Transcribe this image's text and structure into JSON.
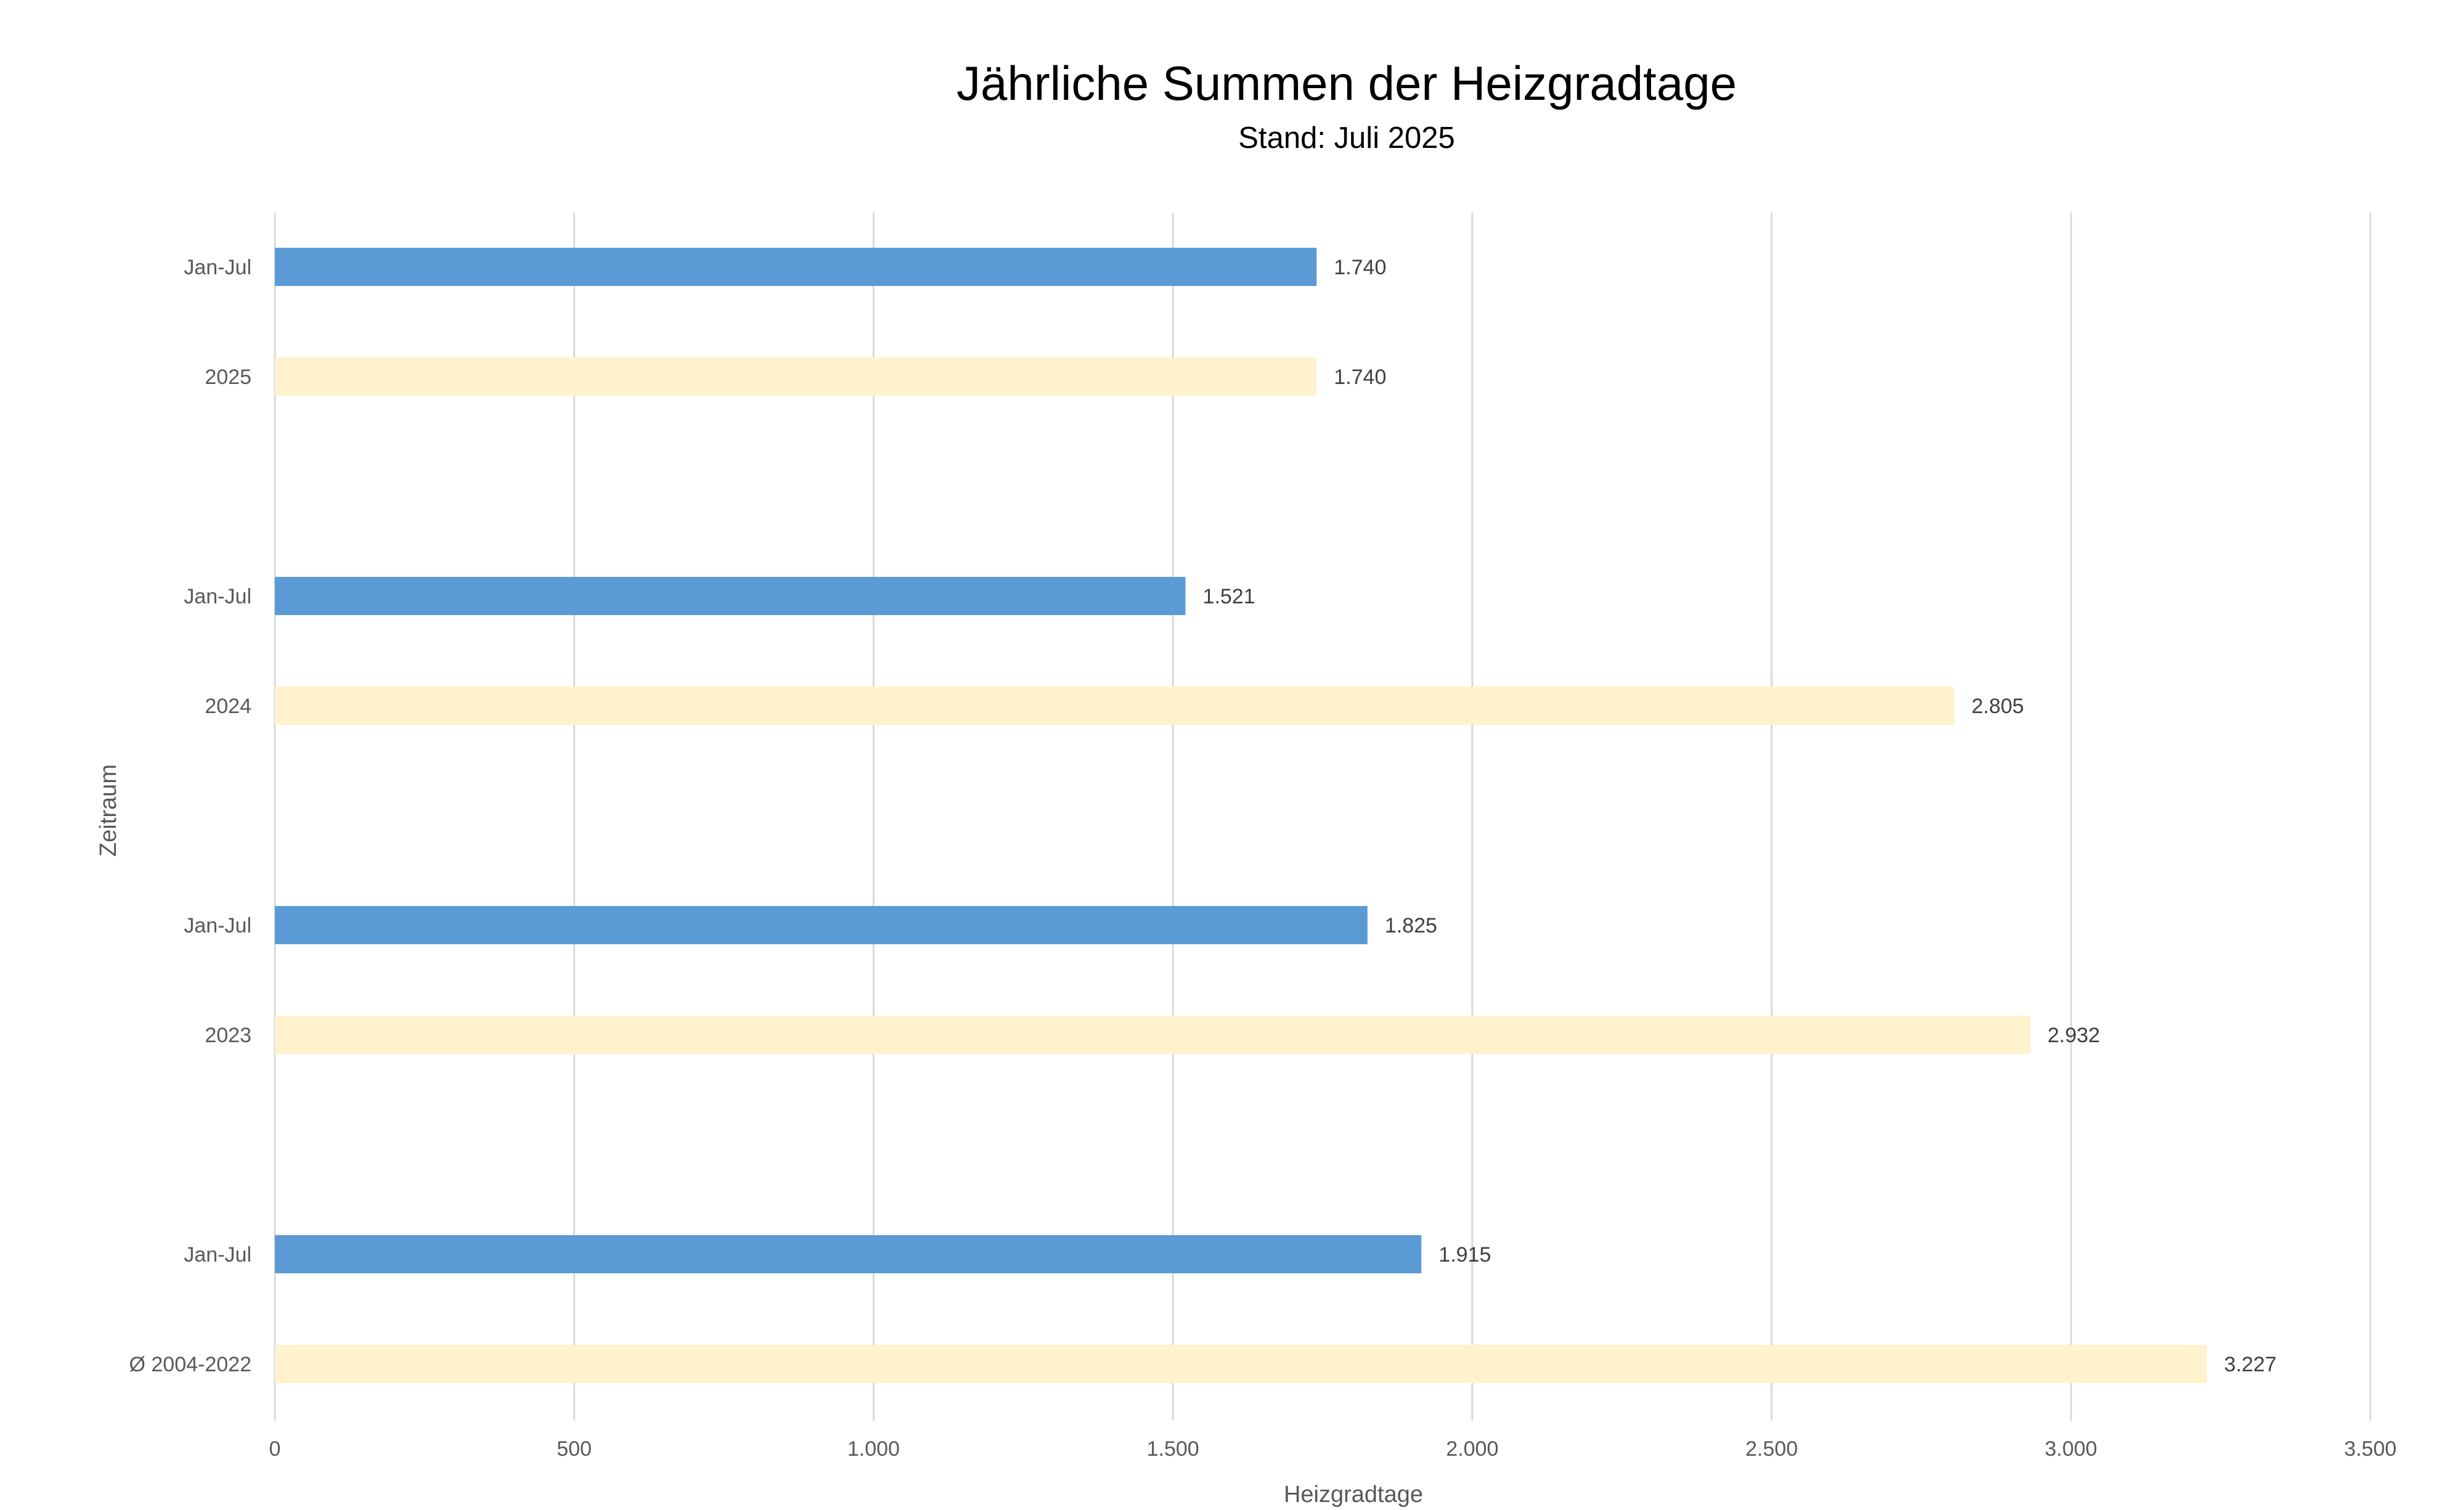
{
  "chart_data": {
    "type": "bar",
    "orientation": "horizontal",
    "title": "Jährliche Summen der Heizgradtage",
    "subtitle": "Stand: Juli 2025",
    "xlabel": "Heizgradtage",
    "ylabel": "Zeitraum",
    "xlim": [
      0,
      3500
    ],
    "xticks": [
      0,
      500,
      1000,
      1500,
      2000,
      2500,
      3000,
      3500
    ],
    "xtick_labels": [
      "0",
      "500",
      "1.000",
      "1.500",
      "2.000",
      "2.500",
      "3.000",
      "3.500"
    ],
    "grid": true,
    "legend": "none",
    "groups": [
      {
        "bars": [
          {
            "label": "Jan-Jul",
            "value": 1740,
            "value_label": "1.740",
            "color": "#5b9bd5"
          },
          {
            "label": "2025",
            "value": 1740,
            "value_label": "1.740",
            "color": "#fff2cc"
          }
        ]
      },
      {
        "bars": [
          {
            "label": "Jan-Jul",
            "value": 1521,
            "value_label": "1.521",
            "color": "#5b9bd5"
          },
          {
            "label": "2024",
            "value": 2805,
            "value_label": "2.805",
            "color": "#fff2cc"
          }
        ]
      },
      {
        "bars": [
          {
            "label": "Jan-Jul",
            "value": 1825,
            "value_label": "1.825",
            "color": "#5b9bd5"
          },
          {
            "label": "2023",
            "value": 2932,
            "value_label": "2.932",
            "color": "#fff2cc"
          }
        ]
      },
      {
        "bars": [
          {
            "label": "Jan-Jul",
            "value": 1915,
            "value_label": "1.915",
            "color": "#5b9bd5"
          },
          {
            "label": "Ø 2004-2022",
            "value": 3227,
            "value_label": "3.227",
            "color": "#fff2cc"
          }
        ]
      }
    ]
  }
}
